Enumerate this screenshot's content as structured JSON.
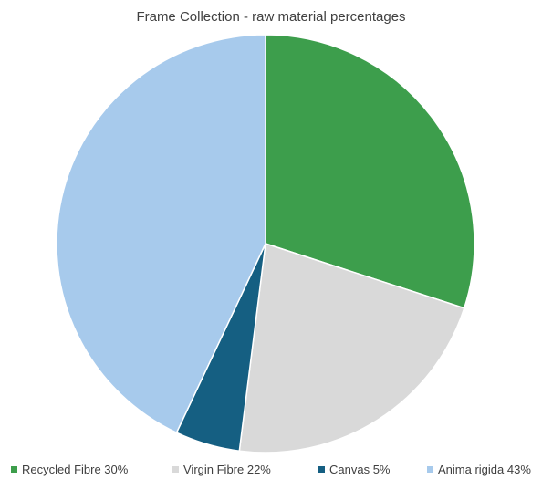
{
  "chart_data": {
    "type": "pie",
    "title": "Frame Collection - raw material percentages",
    "categories": [
      "Recycled Fibre",
      "Virgin Fibre",
      "Canvas",
      "Anima rigida"
    ],
    "values": [
      30,
      22,
      5,
      43
    ],
    "colors": [
      "#3d9e4c",
      "#d9d9d9",
      "#155f82",
      "#a7caec"
    ],
    "legend": {
      "position": "bottom",
      "entries": [
        "Recycled Fibre 30%",
        "Virgin Fibre 22%",
        "Canvas 5%",
        "Anima rigida 43%"
      ]
    },
    "start_angle": "12 o'clock",
    "direction": "clockwise"
  }
}
